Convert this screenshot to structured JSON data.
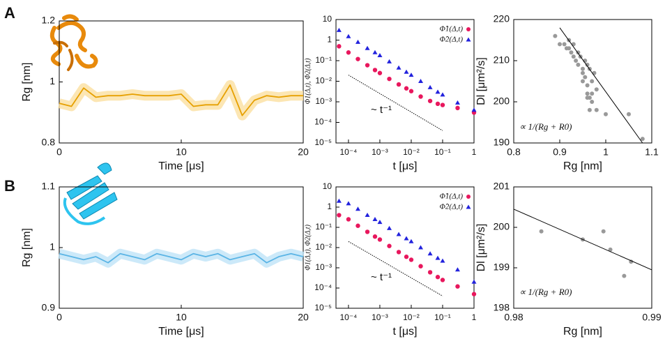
{
  "panel_labels": [
    "A",
    "B"
  ],
  "chart_data": [
    {
      "type": "line",
      "xlabel": "Time [μs]",
      "ylabel": "Rg [nm]",
      "x": [
        0,
        1,
        2,
        3,
        4,
        5,
        6,
        7,
        8,
        9,
        10,
        11,
        12,
        13,
        14,
        15,
        16,
        17,
        18,
        19,
        20
      ],
      "values": [
        0.93,
        0.92,
        0.98,
        0.95,
        0.955,
        0.955,
        0.96,
        0.955,
        0.955,
        0.955,
        0.96,
        0.92,
        0.925,
        0.925,
        0.99,
        0.89,
        0.94,
        0.955,
        0.95,
        0.955,
        0.955
      ],
      "color": "#e6a000",
      "halo_color": "#fbe0a0",
      "xlim": [
        0,
        20
      ],
      "ylim": [
        0.8,
        1.2
      ],
      "xticks": [
        0,
        10,
        20
      ],
      "yticks": [
        0.8,
        1,
        1.2
      ]
    },
    {
      "type": "scatter",
      "xscale": "log",
      "yscale": "log",
      "xlabel": "t [μs]",
      "ylabel": "Φ1(Δ,t), Φ2(Δ,t)",
      "x": [
        5e-05,
        0.0001,
        0.0002,
        0.0004,
        0.0007,
        0.001,
        0.002,
        0.004,
        0.007,
        0.01,
        0.02,
        0.04,
        0.07,
        0.1,
        0.3,
        1
      ],
      "series": [
        {
          "name": "Φ̂1(Δ,t)",
          "color": "#e8175d",
          "marker": "circle",
          "values": [
            0.5,
            0.25,
            0.12,
            0.06,
            0.035,
            0.025,
            0.013,
            0.007,
            0.0045,
            0.0033,
            0.0018,
            0.0011,
            0.0008,
            0.0007,
            0.0005,
            0.0003
          ]
        },
        {
          "name": "Φ̂2(Δ,t)",
          "color": "#2222dd",
          "marker": "triangle",
          "values": [
            3,
            1.5,
            0.8,
            0.4,
            0.25,
            0.18,
            0.09,
            0.045,
            0.028,
            0.02,
            0.01,
            0.005,
            0.003,
            0.0022,
            0.0009,
            0.0004
          ]
        }
      ],
      "guide": {
        "x": [
          0.0001,
          0.1
        ],
        "y": [
          0.02,
          4e-05
        ],
        "label": "~ t⁻¹",
        "style": "dotted"
      },
      "legend": "upper right",
      "xlim": [
        4e-05,
        1
      ],
      "ylim": [
        1e-05,
        10
      ],
      "xticks": [
        {
          "value": 0.0001,
          "label": "10⁻⁴"
        },
        {
          "value": 0.001,
          "label": "10⁻³"
        },
        {
          "value": 0.01,
          "label": "10⁻²"
        },
        {
          "value": 0.1,
          "label": "10⁻¹"
        },
        1
      ],
      "yticks": [
        {
          "value": 1e-05,
          "label": "10⁻⁵"
        },
        {
          "value": 0.0001,
          "label": "10⁻⁴"
        },
        {
          "value": 0.001,
          "label": "10⁻³"
        },
        {
          "value": 0.01,
          "label": "10⁻²"
        },
        {
          "value": 0.1,
          "label": "10⁻¹"
        },
        1,
        10
      ]
    },
    {
      "type": "scatter",
      "xlabel": "Rg [nm]",
      "ylabel": "Dl [μm²/s]",
      "x": [
        0.89,
        0.9,
        0.91,
        0.915,
        0.92,
        0.92,
        0.925,
        0.93,
        0.93,
        0.935,
        0.94,
        0.94,
        0.945,
        0.95,
        0.95,
        0.955,
        0.955,
        0.96,
        0.96,
        0.96,
        0.965,
        0.965,
        0.97,
        0.97,
        0.975,
        0.98,
        0.95,
        0.96,
        0.965,
        0.97,
        0.98,
        1.0,
        1.05,
        1.08
      ],
      "values": [
        216,
        214,
        214,
        213,
        215,
        213,
        212,
        211,
        214,
        210,
        212,
        209,
        211,
        208,
        207,
        210,
        206,
        209,
        204,
        202,
        208,
        201,
        205,
        202,
        207,
        203,
        205,
        201,
        198,
        200,
        198,
        197,
        197,
        191
      ],
      "color": "#999999",
      "guide": {
        "x": [
          0.9,
          1.08
        ],
        "y": [
          218,
          190
        ],
        "label": "∝ 1/(Rg + R0)",
        "style": "solid"
      },
      "xlim": [
        0.8,
        1.1
      ],
      "ylim": [
        190,
        220
      ],
      "xticks": [
        0.8,
        0.9,
        1,
        1.1
      ],
      "yticks": [
        190,
        200,
        210,
        220
      ]
    },
    {
      "type": "line",
      "xlabel": "Time [μs]",
      "ylabel": "Rg [nm]",
      "x": [
        0,
        1,
        2,
        3,
        4,
        5,
        6,
        7,
        8,
        9,
        10,
        11,
        12,
        13,
        14,
        15,
        16,
        17,
        18,
        19,
        20
      ],
      "values": [
        0.99,
        0.985,
        0.98,
        0.985,
        0.975,
        0.99,
        0.985,
        0.98,
        0.99,
        0.985,
        0.98,
        0.99,
        0.985,
        0.99,
        0.98,
        0.985,
        0.99,
        0.975,
        0.985,
        0.99,
        0.985
      ],
      "color": "#5ab4e5",
      "halo_color": "#bfe3f7",
      "xlim": [
        0,
        20
      ],
      "ylim": [
        0.9,
        1.1
      ],
      "xticks": [
        0,
        10,
        20
      ],
      "yticks": [
        0.9,
        1,
        1.1
      ]
    },
    {
      "type": "scatter",
      "xscale": "log",
      "yscale": "log",
      "xlabel": "t [μs]",
      "ylabel": "Φ1(Δ,t), Φ2(Δ,t)",
      "x": [
        5e-05,
        0.0001,
        0.0002,
        0.0004,
        0.0007,
        0.001,
        0.002,
        0.004,
        0.007,
        0.01,
        0.02,
        0.04,
        0.07,
        0.1,
        0.3,
        1
      ],
      "series": [
        {
          "name": "Φ̂1(Δ,t)",
          "color": "#e8175d",
          "marker": "circle",
          "values": [
            0.4,
            0.25,
            0.12,
            0.06,
            0.035,
            0.025,
            0.012,
            0.006,
            0.0035,
            0.0025,
            0.0012,
            0.0006,
            0.00035,
            0.00025,
            0.00012,
            5e-05
          ]
        },
        {
          "name": "Φ̂2(Δ,t)",
          "color": "#2222dd",
          "marker": "triangle",
          "values": [
            2,
            1.5,
            0.8,
            0.4,
            0.25,
            0.18,
            0.09,
            0.045,
            0.028,
            0.02,
            0.01,
            0.005,
            0.003,
            0.0022,
            0.0008,
            0.0002
          ]
        }
      ],
      "guide": {
        "x": [
          0.0001,
          0.1
        ],
        "y": [
          0.02,
          4e-05
        ],
        "label": "~ t⁻¹",
        "style": "dotted"
      },
      "legend": "upper right",
      "xlim": [
        4e-05,
        1
      ],
      "ylim": [
        1e-05,
        10
      ],
      "xticks": [
        {
          "value": 0.0001,
          "label": "10⁻⁴"
        },
        {
          "value": 0.001,
          "label": "10⁻³"
        },
        {
          "value": 0.01,
          "label": "10⁻²"
        },
        {
          "value": 0.1,
          "label": "10⁻¹"
        },
        1
      ],
      "yticks": [
        {
          "value": 1e-05,
          "label": "10⁻⁵"
        },
        {
          "value": 0.0001,
          "label": "10⁻⁴"
        },
        {
          "value": 0.001,
          "label": "10⁻³"
        },
        {
          "value": 0.01,
          "label": "10⁻²"
        },
        {
          "value": 0.1,
          "label": "10⁻¹"
        },
        1,
        10
      ]
    },
    {
      "type": "scatter",
      "xlabel": "Rg [nm]",
      "ylabel": "Dl [μm²/s]",
      "x": [
        0.982,
        0.985,
        0.9865,
        0.987,
        0.988,
        0.9885
      ],
      "values": [
        199.9,
        199.7,
        199.9,
        199.45,
        198.8,
        199.15
      ],
      "color": "#999999",
      "guide": {
        "x": [
          0.98,
          0.99
        ],
        "y": [
          200.45,
          198.95
        ],
        "label": "∝ 1/(Rg + R0)",
        "style": "solid"
      },
      "xlim": [
        0.98,
        0.99
      ],
      "ylim": [
        198,
        201
      ],
      "xticks": [
        0.98,
        0.99
      ],
      "yticks": [
        198,
        199,
        200,
        201
      ]
    }
  ]
}
